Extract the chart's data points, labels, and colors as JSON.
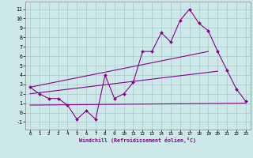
{
  "bg_color": "#cce8e8",
  "grid_color": "#aacccc",
  "line_color": "#880088",
  "xlabel": "Windchill (Refroidissement éolien,°C)",
  "xlim": [
    -0.5,
    23.5
  ],
  "ylim": [
    -1.8,
    11.8
  ],
  "xticks": [
    0,
    1,
    2,
    3,
    4,
    5,
    6,
    7,
    8,
    9,
    10,
    11,
    12,
    13,
    14,
    15,
    16,
    17,
    18,
    19,
    20,
    21,
    22,
    23
  ],
  "yticks": [
    -1,
    0,
    1,
    2,
    3,
    4,
    5,
    6,
    7,
    8,
    9,
    10,
    11
  ],
  "line1_x": [
    0,
    1,
    2,
    3,
    4,
    5,
    6,
    7,
    8,
    9,
    10,
    11,
    12,
    13,
    14,
    15,
    16,
    17,
    18,
    19,
    20,
    21,
    22,
    23
  ],
  "line1_y": [
    2.7,
    2.0,
    1.5,
    1.5,
    0.8,
    -0.7,
    0.2,
    -0.7,
    4.0,
    1.5,
    2.0,
    3.2,
    6.5,
    6.5,
    8.5,
    7.5,
    9.8,
    11.0,
    9.5,
    8.7,
    6.5,
    4.5,
    2.5,
    1.2
  ],
  "line2_x": [
    0,
    19
  ],
  "line2_y": [
    2.7,
    6.5
  ],
  "line3_x": [
    0,
    20
  ],
  "line3_y": [
    2.0,
    4.4
  ],
  "line4_x": [
    0,
    23
  ],
  "line4_y": [
    0.8,
    1.0
  ]
}
